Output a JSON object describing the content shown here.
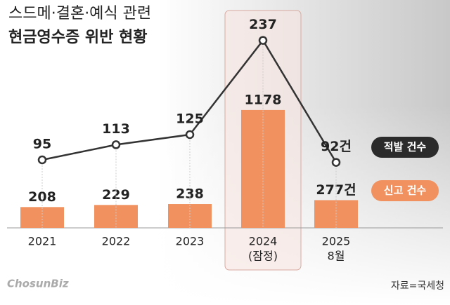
{
  "chart_data": {
    "type": "bar_line",
    "title": [
      "스드메·결혼·예식 관련",
      "현금영수증 위반 현황"
    ],
    "categories": [
      "2021",
      "2022",
      "2023",
      "2024",
      "2025"
    ],
    "category_notes": [
      null,
      null,
      null,
      "(잠정)",
      "8월"
    ],
    "series": [
      {
        "name": "적발 건수",
        "type": "line",
        "color": "#333333",
        "values": [
          95,
          113,
          125,
          237,
          92
        ],
        "value_labels": [
          null,
          null,
          null,
          null,
          "92건"
        ]
      },
      {
        "name": "신고 건수",
        "type": "bar",
        "color": "#f0915f",
        "values": [
          208,
          229,
          238,
          1178,
          277
        ],
        "value_labels": [
          null,
          null,
          null,
          null,
          "277건"
        ]
      }
    ],
    "source": "자료=국세청",
    "logo": "ChosunBiz"
  }
}
